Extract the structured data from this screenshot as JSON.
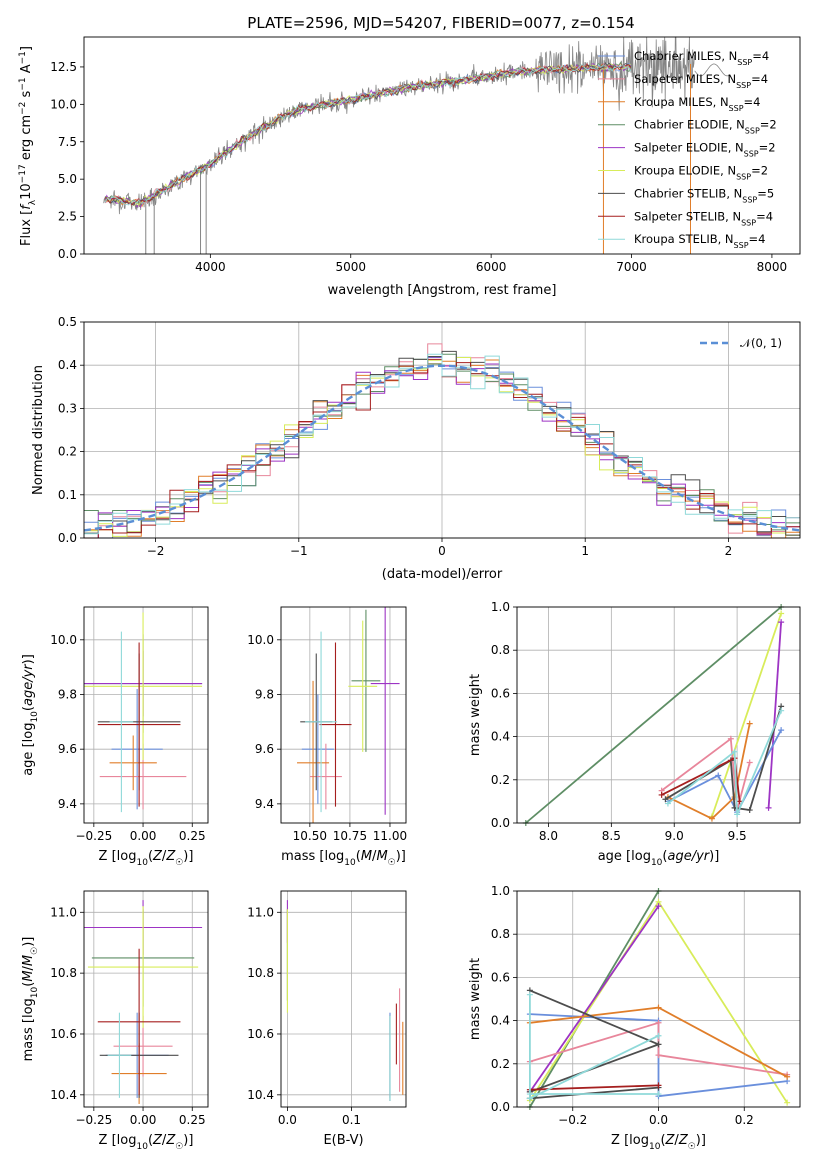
{
  "title": "PLATE=2596, MJD=54207, FIBERID=0077, z=0.154",
  "colors": {
    "Chabrier MILES": "#6a8fdc",
    "Salpeter MILES": "#e8869b",
    "Kroupa MILES": "#e07e2a",
    "Chabrier ELODIE": "#5e8e65",
    "Salpeter ELODIE": "#9d34c4",
    "Kroupa ELODIE": "#d8ec5a",
    "Chabrier STELIB": "#4d4d4d",
    "Salpeter STELIB": "#a51f1f",
    "Kroupa STELIB": "#8fd9d9",
    "data": "#858585",
    "normal": "#5a8fd6"
  },
  "chart_data": [
    {
      "id": "spectrum",
      "type": "line",
      "xlabel": "wavelength [Angstrom, rest frame]",
      "ylabel": "Flux [f_λ 10^-17 erg cm^-2 s^-1 A^-1]",
      "xlim": [
        3100,
        8200
      ],
      "ylim": [
        0,
        14.5
      ],
      "xticks": [
        "4000",
        "5000",
        "6000",
        "7000",
        "8000"
      ],
      "yticks": [
        "0.0",
        "2.5",
        "5.0",
        "7.5",
        "10.0",
        "12.5"
      ],
      "legend_position": "right",
      "legend": [
        {
          "name": "Chabrier MILES",
          "nssp": "4"
        },
        {
          "name": "Salpeter MILES",
          "nssp": "4"
        },
        {
          "name": "Kroupa MILES",
          "nssp": "4"
        },
        {
          "name": "Chabrier ELODIE",
          "nssp": "2"
        },
        {
          "name": "Salpeter ELODIE",
          "nssp": "2"
        },
        {
          "name": "Kroupa ELODIE",
          "nssp": "2"
        },
        {
          "name": "Chabrier STELIB",
          "nssp": "5"
        },
        {
          "name": "Salpeter STELIB",
          "nssp": "4"
        },
        {
          "name": "Kroupa STELIB",
          "nssp": "4"
        }
      ],
      "continuum_x": [
        3250,
        3500,
        3800,
        4000,
        4200,
        4400,
        4600,
        4800,
        5000,
        5200,
        5400,
        5600,
        5800,
        6000,
        6200,
        6400,
        6600,
        6800,
        7000,
        7200,
        7400
      ],
      "continuum_y": [
        3.7,
        3.4,
        5.0,
        6.0,
        7.4,
        8.6,
        9.6,
        10.0,
        10.3,
        10.7,
        11.1,
        11.4,
        11.6,
        11.9,
        12.2,
        12.3,
        12.4,
        12.5,
        12.5,
        12.6,
        12.7
      ],
      "grid": false
    },
    {
      "id": "residuals",
      "type": "line",
      "xlabel": "(data-model)/error",
      "ylabel": "Normed distribution",
      "xlim": [
        -2.5,
        2.5
      ],
      "ylim": [
        0,
        0.5
      ],
      "xticks": [
        "−2",
        "−1",
        "0",
        "1",
        "2"
      ],
      "yticks": [
        "0.0",
        "0.1",
        "0.2",
        "0.3",
        "0.4",
        "0.5"
      ],
      "legend": "𝒩(0, 1)",
      "legend_position": "top-right",
      "grid": true
    },
    {
      "id": "z-age",
      "type": "scatter",
      "xlabel": "Z [log10(Z/Z☉)]",
      "ylabel": "age [log10(age/yr)]",
      "xlim": [
        -0.3,
        0.33
      ],
      "ylim": [
        9.33,
        10.12
      ],
      "xticks": [
        "−0.25",
        "0.00",
        "0.25"
      ],
      "yticks": [
        "9.4",
        "9.6",
        "9.8",
        "10.0"
      ],
      "points": [
        {
          "model": "Chabrier MILES",
          "x": -0.03,
          "xerr": 0.13,
          "y": 9.6,
          "yerr": 0.22
        },
        {
          "model": "Salpeter MILES",
          "x": 0.0,
          "xerr": 0.22,
          "y": 9.5,
          "yerr": 0.12
        },
        {
          "model": "Kroupa MILES",
          "x": -0.05,
          "xerr": 0.12,
          "y": 9.55,
          "yerr": 0.1
        },
        {
          "model": "Chabrier ELODIE",
          "x": 0.0,
          "xerr": 0.3,
          "y": 9.84,
          "yerr": 0.18
        },
        {
          "model": "Salpeter ELODIE",
          "x": 0.0,
          "xerr": 0.3,
          "y": 9.84,
          "yerr": 0.12
        },
        {
          "model": "Kroupa ELODIE",
          "x": 0.0,
          "xerr": 0.3,
          "y": 9.83,
          "yerr": 0.27
        },
        {
          "model": "Chabrier STELIB",
          "x": -0.02,
          "xerr": 0.21,
          "y": 9.7,
          "yerr": 0.25
        },
        {
          "model": "Salpeter STELIB",
          "x": -0.02,
          "xerr": 0.21,
          "y": 9.69,
          "yerr": 0.3
        },
        {
          "model": "Kroupa STELIB",
          "x": -0.11,
          "xerr": 0.06,
          "y": 9.7,
          "yerr": 0.33
        }
      ],
      "grid": true
    },
    {
      "id": "mass-age",
      "type": "scatter",
      "xlabel": "mass [log10(M/M☉)]",
      "ylabel": "",
      "xlim": [
        10.32,
        11.1
      ],
      "ylim": [
        9.33,
        10.12
      ],
      "xticks": [
        "10.50",
        "10.75",
        "11.00"
      ],
      "yticks": [
        "9.4",
        "9.6",
        "9.8",
        "10.0"
      ],
      "points": [
        {
          "model": "Chabrier MILES",
          "x": 10.55,
          "xerr": 0.1,
          "y": 9.6,
          "yerr": 0.2
        },
        {
          "model": "Salpeter MILES",
          "x": 10.6,
          "xerr": 0.1,
          "y": 9.5,
          "yerr": 0.12
        },
        {
          "model": "Kroupa MILES",
          "x": 10.52,
          "xerr": 0.1,
          "y": 9.55,
          "yerr": 0.3
        },
        {
          "model": "Chabrier ELODIE",
          "x": 10.85,
          "xerr": 0.09,
          "y": 9.85,
          "yerr": 0.26
        },
        {
          "model": "Salpeter ELODIE",
          "x": 10.97,
          "xerr": 0.09,
          "y": 9.84,
          "yerr": 0.48
        },
        {
          "model": "Kroupa ELODIE",
          "x": 10.83,
          "xerr": 0.09,
          "y": 9.83,
          "yerr": 0.24
        },
        {
          "model": "Chabrier STELIB",
          "x": 10.54,
          "xerr": 0.1,
          "y": 9.7,
          "yerr": 0.25
        },
        {
          "model": "Salpeter STELIB",
          "x": 10.66,
          "xerr": 0.1,
          "y": 9.69,
          "yerr": 0.3
        },
        {
          "model": "Kroupa STELIB",
          "x": 10.57,
          "xerr": 0.1,
          "y": 9.7,
          "yerr": 0.33
        }
      ],
      "grid": true
    },
    {
      "id": "age-weight",
      "type": "line",
      "xlabel": "age [log10(age/yr)]",
      "ylabel": "mass weight",
      "xlim": [
        7.75,
        10.0
      ],
      "ylim": [
        0,
        1.0
      ],
      "xticks": [
        "8.0",
        "8.5",
        "9.0",
        "9.5"
      ],
      "yticks": [
        "0.0",
        "0.2",
        "0.4",
        "0.6",
        "0.8",
        "1.0"
      ],
      "series": [
        {
          "name": "Chabrier ELODIE",
          "x": [
            7.82,
            9.85
          ],
          "y": [
            0.0,
            1.0
          ]
        },
        {
          "name": "Kroupa ELODIE",
          "x": [
            9.3,
            9.85
          ],
          "y": [
            0.03,
            0.97
          ]
        },
        {
          "name": "Salpeter ELODIE",
          "x": [
            9.75,
            9.85
          ],
          "y": [
            0.07,
            0.93
          ]
        },
        {
          "name": "Chabrier MILES",
          "x": [
            8.95,
            9.35,
            9.5,
            9.85
          ],
          "y": [
            0.1,
            0.22,
            0.05,
            0.43
          ]
        },
        {
          "name": "Salpeter MILES",
          "x": [
            8.9,
            9.45,
            9.5,
            9.6
          ],
          "y": [
            0.15,
            0.39,
            0.06,
            0.28
          ]
        },
        {
          "name": "Kroupa MILES",
          "x": [
            8.95,
            9.3,
            9.48,
            9.6
          ],
          "y": [
            0.12,
            0.02,
            0.12,
            0.46
          ]
        },
        {
          "name": "Chabrier STELIB",
          "x": [
            8.93,
            9.45,
            9.48,
            9.6,
            9.85
          ],
          "y": [
            0.11,
            0.29,
            0.07,
            0.06,
            0.54
          ]
        },
        {
          "name": "Salpeter STELIB",
          "x": [
            8.9,
            9.48,
            9.52
          ],
          "y": [
            0.13,
            0.3,
            0.1
          ]
        },
        {
          "name": "Kroupa STELIB",
          "x": [
            8.95,
            9.48,
            9.5,
            9.85
          ],
          "y": [
            0.09,
            0.33,
            0.04,
            0.52
          ]
        }
      ],
      "grid": true
    },
    {
      "id": "z-mass",
      "type": "scatter",
      "xlabel": "Z [log10(Z/Z☉)]",
      "ylabel": "mass [log10(M/M☉)]",
      "xlim": [
        -0.3,
        0.33
      ],
      "ylim": [
        10.36,
        11.07
      ],
      "xticks": [
        "−0.25",
        "0.00",
        "0.25"
      ],
      "yticks": [
        "10.4",
        "10.6",
        "10.8",
        "11.0"
      ],
      "points": [
        {
          "model": "Chabrier MILES",
          "x": -0.03,
          "xerr": 0.16,
          "y": 10.53,
          "yerr": 0.14
        },
        {
          "model": "Salpeter MILES",
          "x": 0.0,
          "xerr": 0.15,
          "y": 10.56,
          "yerr": 0.1
        },
        {
          "model": "Kroupa MILES",
          "x": -0.02,
          "xerr": 0.14,
          "y": 10.47,
          "yerr": 0.1
        },
        {
          "model": "Chabrier ELODIE",
          "x": 0.0,
          "xerr": 0.26,
          "y": 10.85,
          "yerr": 0.16
        },
        {
          "model": "Salpeter ELODIE",
          "x": 0.0,
          "xerr": 0.3,
          "y": 10.95,
          "yerr": 0.09
        },
        {
          "model": "Kroupa ELODIE",
          "x": 0.0,
          "xerr": 0.28,
          "y": 10.82,
          "yerr": 0.2
        },
        {
          "model": "Chabrier STELIB",
          "x": -0.02,
          "xerr": 0.2,
          "y": 10.53,
          "yerr": 0.14
        },
        {
          "model": "Salpeter STELIB",
          "x": -0.02,
          "xerr": 0.21,
          "y": 10.64,
          "yerr": 0.24
        },
        {
          "model": "Kroupa STELIB",
          "x": -0.12,
          "xerr": 0.06,
          "y": 10.53,
          "yerr": 0.14
        }
      ],
      "grid": true
    },
    {
      "id": "ebv-mass",
      "type": "scatter",
      "xlabel": "E(B-V)",
      "ylabel": "",
      "xlim": [
        -0.01,
        0.185
      ],
      "ylim": [
        10.36,
        11.07
      ],
      "xticks": [
        "0.0",
        "0.1"
      ],
      "yticks": [
        "10.4",
        "10.6",
        "10.8",
        "11.0"
      ],
      "points": [
        {
          "model": "Chabrier MILES",
          "x": 0.16,
          "xerr": 0,
          "y": 10.53,
          "yerr": 0.14
        },
        {
          "model": "Salpeter MILES",
          "x": 0.175,
          "xerr": 0,
          "y": 10.58,
          "yerr": 0.17
        },
        {
          "model": "Kroupa MILES",
          "x": 0.18,
          "xerr": 0,
          "y": 10.52,
          "yerr": 0.12
        },
        {
          "model": "Chabrier ELODIE",
          "x": 0.0,
          "xerr": 0,
          "y": 10.86,
          "yerr": 0.15
        },
        {
          "model": "Salpeter ELODIE",
          "x": 0.0,
          "xerr": 0,
          "y": 10.97,
          "yerr": 0.07
        },
        {
          "model": "Kroupa ELODIE",
          "x": 0.0,
          "xerr": 0,
          "y": 10.84,
          "yerr": 0.17
        },
        {
          "model": "Chabrier STELIB",
          "x": 0.16,
          "xerr": 0,
          "y": 10.52,
          "yerr": 0.14
        },
        {
          "model": "Salpeter STELIB",
          "x": 0.17,
          "xerr": 0,
          "y": 10.6,
          "yerr": 0.1
        },
        {
          "model": "Kroupa STELIB",
          "x": 0.16,
          "xerr": 0,
          "y": 10.52,
          "yerr": 0.14
        }
      ],
      "grid": true
    },
    {
      "id": "z-weight",
      "type": "line",
      "xlabel": "Z [log10(Z/Z☉)]",
      "ylabel": "mass weight",
      "xlim": [
        -0.33,
        0.33
      ],
      "ylim": [
        0,
        1.0
      ],
      "xticks": [
        "−0.2",
        "0.0",
        "0.2"
      ],
      "yticks": [
        "0.0",
        "0.2",
        "0.4",
        "0.6",
        "0.8",
        "1.0"
      ],
      "series": [
        {
          "name": "Chabrier ELODIE",
          "x": [
            -0.3,
            0.0
          ],
          "y": [
            0.0,
            1.0
          ]
        },
        {
          "name": "Kroupa ELODIE",
          "x": [
            -0.3,
            0.0,
            0.3
          ],
          "y": [
            0.03,
            0.95,
            0.02
          ]
        },
        {
          "name": "Salpeter ELODIE",
          "x": [
            -0.3,
            0.0
          ],
          "y": [
            0.07,
            0.93
          ]
        },
        {
          "name": "Chabrier MILES",
          "x": [
            -0.3,
            0.0,
            0.0,
            0.3
          ],
          "y": [
            0.43,
            0.4,
            0.05,
            0.12
          ]
        },
        {
          "name": "Salpeter MILES",
          "x": [
            -0.3,
            0.0,
            0.0,
            0.3
          ],
          "y": [
            0.21,
            0.39,
            0.24,
            0.15
          ]
        },
        {
          "name": "Kroupa MILES",
          "x": [
            -0.3,
            0.0,
            0.3
          ],
          "y": [
            0.39,
            0.46,
            0.14
          ]
        },
        {
          "name": "Chabrier STELIB",
          "x": [
            -0.3,
            0.0,
            -0.3,
            -0.3,
            0.0
          ],
          "y": [
            0.54,
            0.29,
            0.07,
            0.04,
            0.09
          ]
        },
        {
          "name": "Salpeter STELIB",
          "x": [
            -0.3,
            0.0
          ],
          "y": [
            0.08,
            0.1
          ]
        },
        {
          "name": "Kroupa STELIB",
          "x": [
            -0.3,
            -0.3,
            0.0
          ],
          "y": [
            0.52,
            0.04,
            0.33
          ]
        },
        {
          "name": "Kroupa STELIB",
          "x": [
            -0.3,
            0.0
          ],
          "y": [
            0.06,
            0.06
          ]
        }
      ],
      "grid": true
    }
  ]
}
